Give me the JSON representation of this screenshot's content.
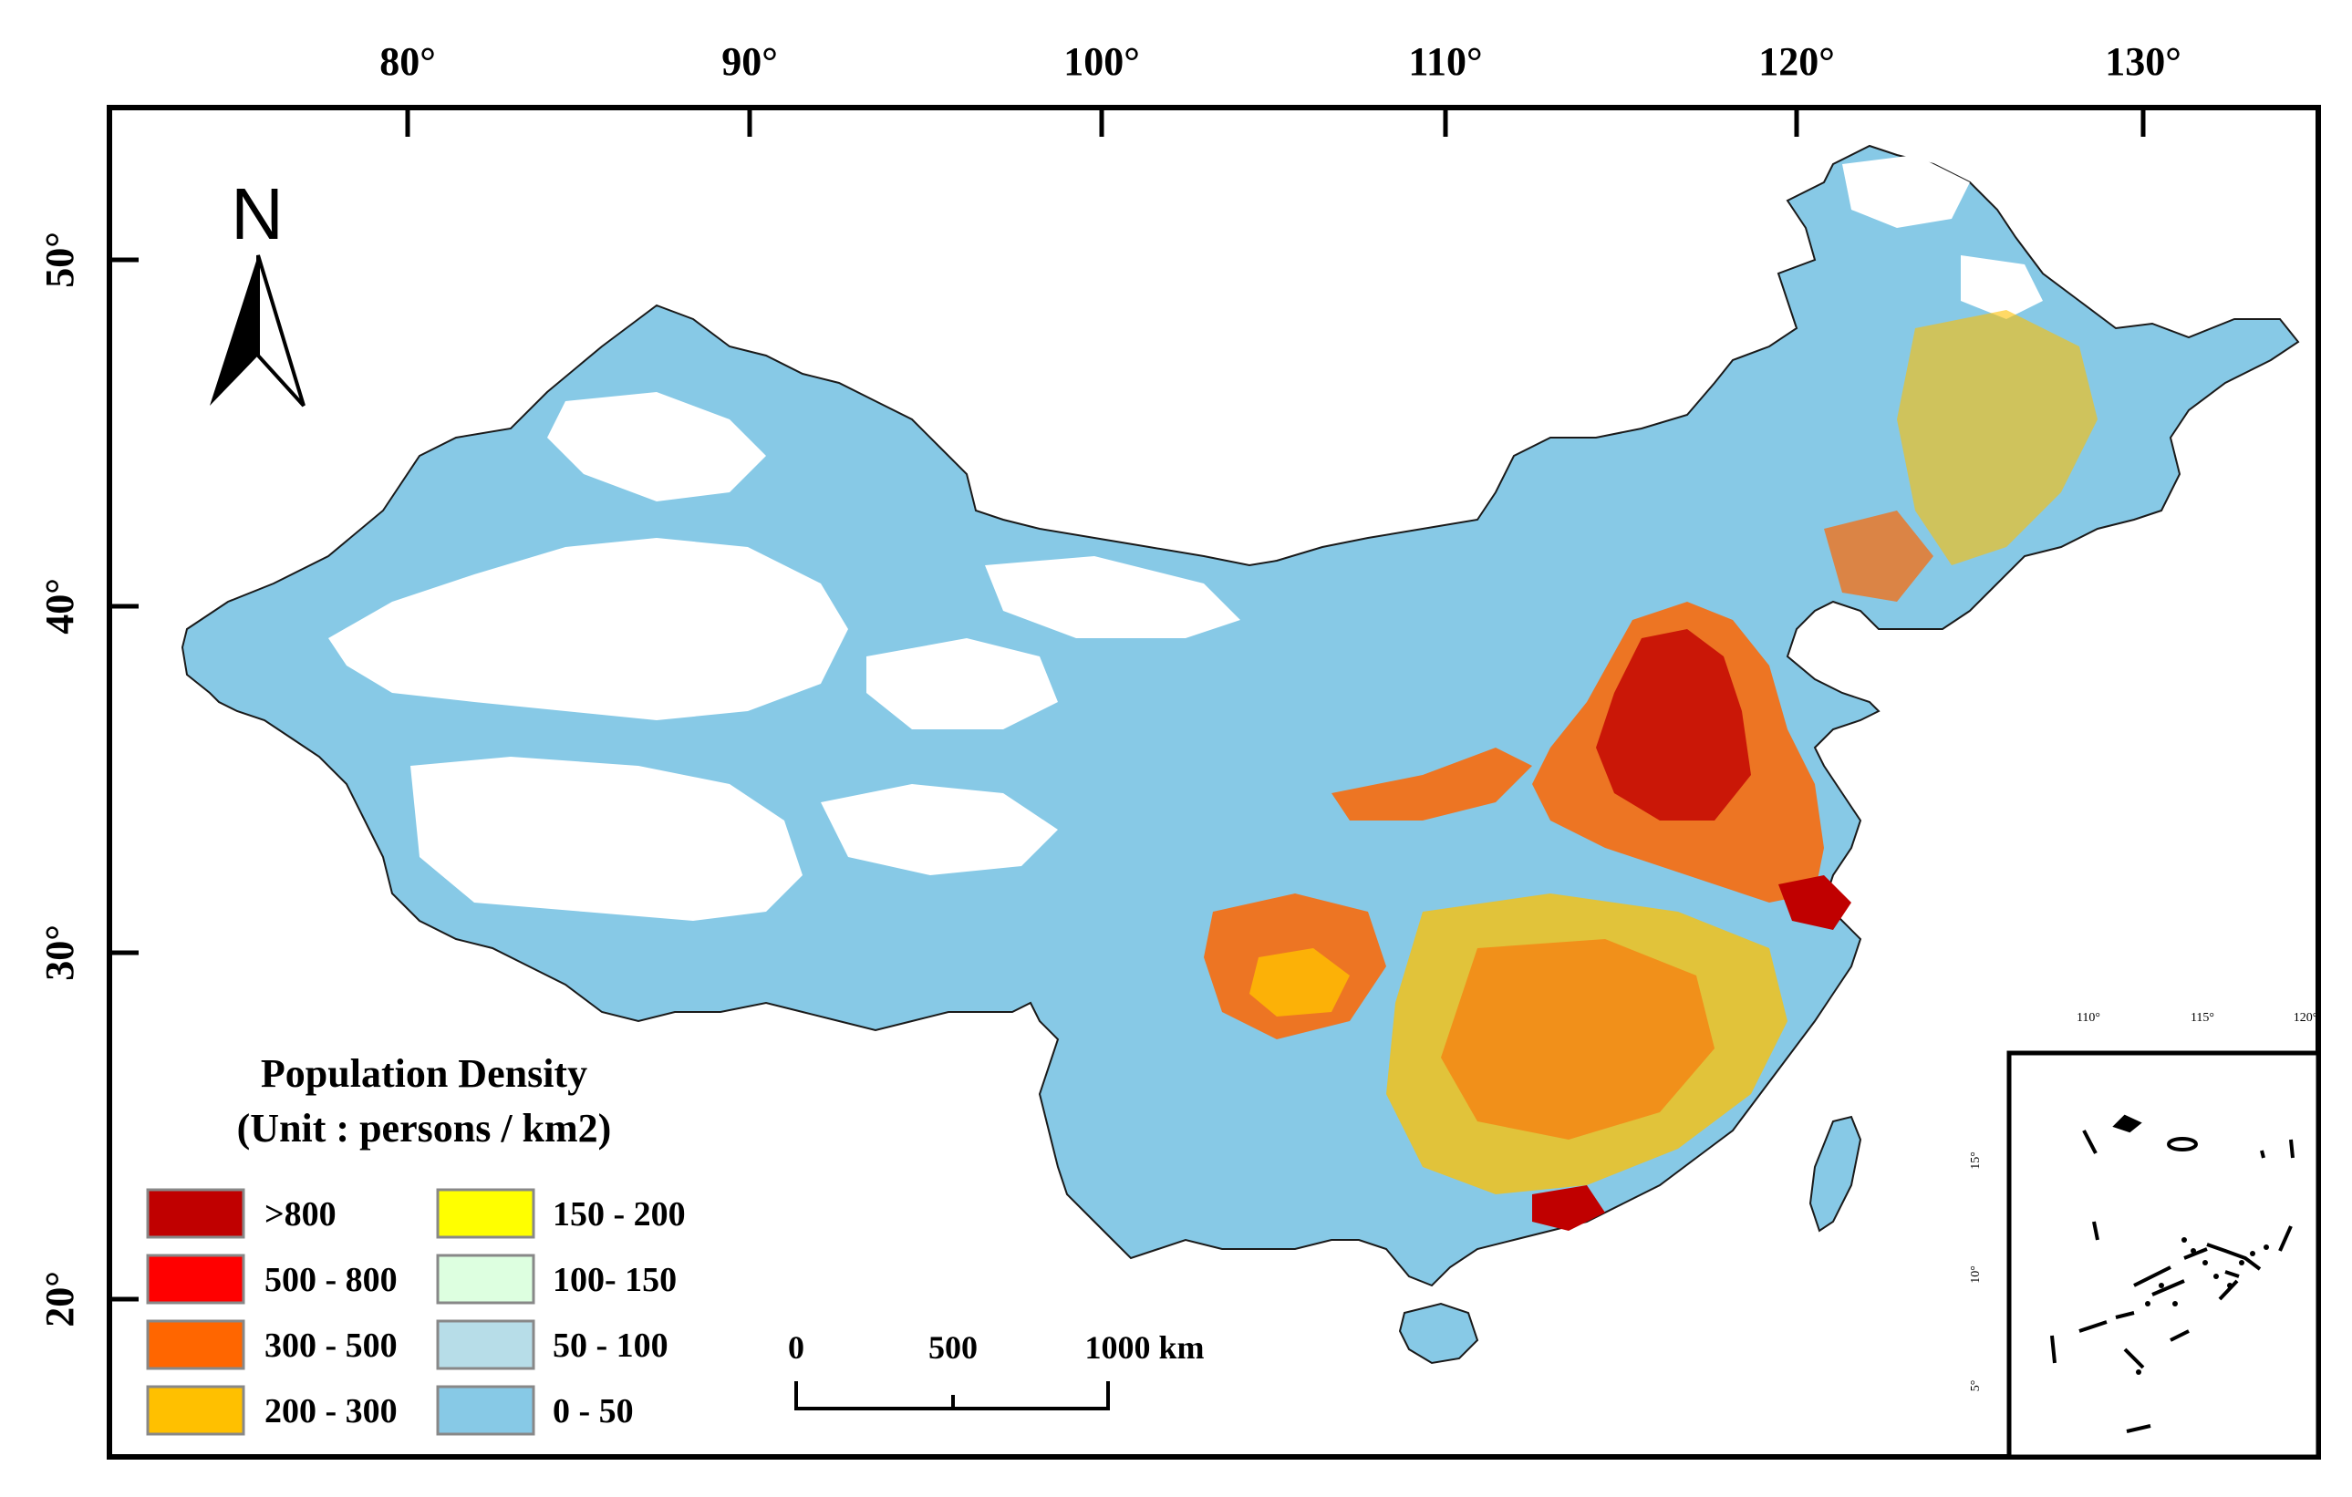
{
  "map": {
    "top_ticks": [
      "80°",
      "90°",
      "100°",
      "110°",
      "120°",
      "130°"
    ],
    "left_ticks": [
      "50°",
      "40°",
      "30°",
      "20°"
    ],
    "north_label": "N",
    "legend": {
      "title_line1": "Population Density",
      "title_line2": "(Unit : persons / km2)",
      "items": [
        {
          "label": ">800",
          "color": "#C00000"
        },
        {
          "label": "500 - 800",
          "color": "#FF0000"
        },
        {
          "label": "300 - 500",
          "color": "#FF6600"
        },
        {
          "label": "200 - 300",
          "color": "#FFC000"
        },
        {
          "label": "150 - 200",
          "color": "#FFFF00"
        },
        {
          "label": "100- 150",
          "color": "#DDFFE0"
        },
        {
          "label": "50 - 100",
          "color": "#B7DDE8"
        },
        {
          "label": "0 - 50",
          "color": "#87C9E6"
        }
      ]
    },
    "scale_bar": {
      "labels": [
        "0",
        "500",
        "1000 km"
      ]
    },
    "inset": {
      "top_ticks": [
        "110°",
        "115°",
        "120°"
      ],
      "left_ticks": [
        "15°",
        "10°",
        "5°"
      ]
    },
    "colors": {
      "land": "#87C9E6",
      "empty": "#FFFFFF",
      "frame": "#000000",
      "hotspot_dark": "#C00000",
      "hotspot_orange": "#FF6600",
      "hotspot_yellow": "#FFC000"
    }
  }
}
